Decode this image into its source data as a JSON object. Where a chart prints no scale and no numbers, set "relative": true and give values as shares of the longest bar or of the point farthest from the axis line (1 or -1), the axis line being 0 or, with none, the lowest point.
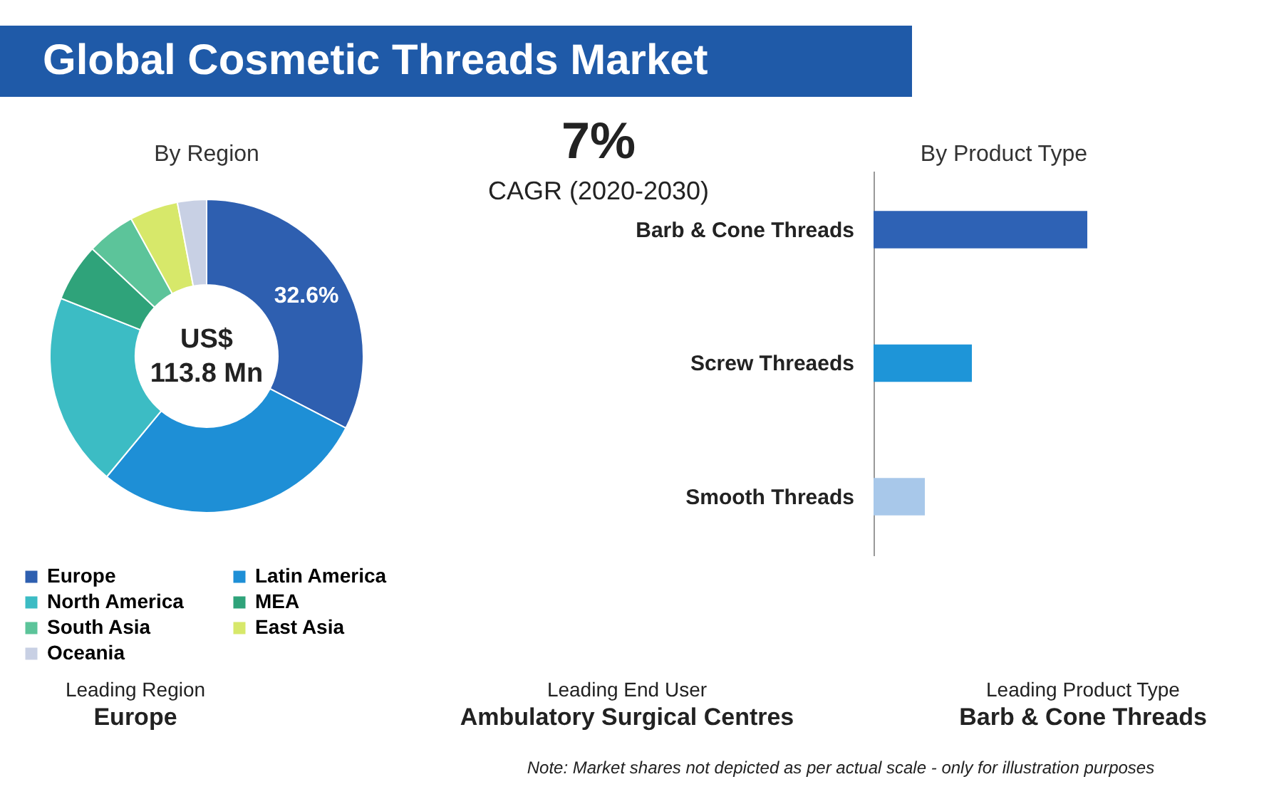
{
  "chart_data": [
    {
      "type": "donut",
      "title": "Global Cosmetic Threads Market",
      "subtitle": "By Region",
      "categories": [
        "Europe",
        "Latin America",
        "North America",
        "MEA",
        "South Asia",
        "East Asia",
        "Oceania"
      ],
      "values": [
        32.6,
        28.4,
        20,
        6,
        5,
        5,
        3
      ],
      "colors": [
        "#2e5fb0",
        "#1e8fd6",
        "#3cbcc4",
        "#2fa37a",
        "#5cc49a",
        "#d7e86a",
        "#c8d0e4"
      ],
      "value_labels": [
        "32.6%",
        null,
        null,
        null,
        null,
        null,
        null
      ],
      "legend": "bottom",
      "annotations": [
        "7%",
        "CAGR (2020-2030)",
        "US$ 113.8 Mn",
        "Leading Region",
        "Europe",
        "Leading End User",
        "Ambulatory Surgical Centres",
        "Leading Product Type",
        "Barb & Cone Threads",
        "Note: Market shares not depicted as per actual scale - only for illustration purposes"
      ]
    },
    {
      "type": "bar",
      "title": "By Product Type",
      "orientation": "horizontal",
      "relative": true,
      "categories": [
        "Barb & Cone Threads",
        "Screw Threaeds",
        "Smooth Threads"
      ],
      "values": [
        1,
        0.46,
        0.24
      ],
      "colors": [
        "#2e62b5",
        "#1e95d8",
        "#a8c8ea"
      ]
    }
  ]
}
